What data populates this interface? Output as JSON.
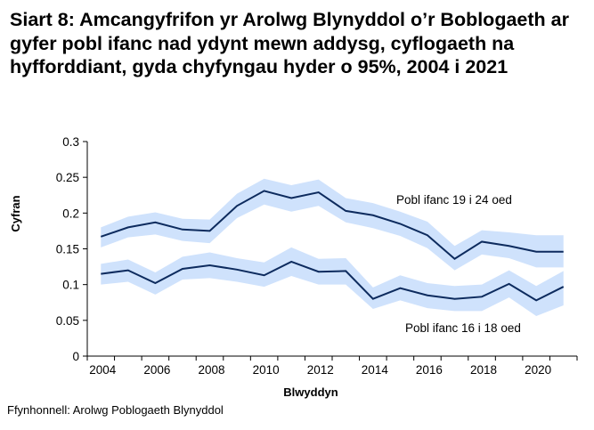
{
  "chart_data": {
    "type": "line",
    "title": "Siart 8: Amcangyfrifon yr Arolwg Blynyddol o’r Boblogaeth ar gyfer pobl ifanc nad ydynt mewn addysg, cyflogaeth na hyfforddiant, gyda chyfyngau hyder o 95%, 2004 i 2021",
    "xlabel": "Blwyddyn",
    "ylabel": "Cyfran",
    "ylim": [
      0,
      0.3
    ],
    "yticks": [
      "0",
      "0.05",
      "0.1",
      "0.15",
      "0.2",
      "0.25",
      "0.3"
    ],
    "xticks": [
      "2004",
      "2006",
      "2008",
      "2010",
      "2012",
      "2014",
      "2016",
      "2018",
      "2020"
    ],
    "x": [
      2004,
      2005,
      2006,
      2007,
      2008,
      2009,
      2010,
      2011,
      2012,
      2013,
      2014,
      2015,
      2016,
      2017,
      2018,
      2019,
      2020,
      2021
    ],
    "grid": false,
    "line_color": "#0d2b5e",
    "band_color": "#cfe2fc",
    "series": [
      {
        "name": "Pobl ifanc 19 i 24 oed",
        "values": [
          0.167,
          0.18,
          0.187,
          0.177,
          0.175,
          0.21,
          0.231,
          0.221,
          0.229,
          0.203,
          0.197,
          0.185,
          0.169,
          0.136,
          0.16,
          0.154,
          0.146,
          0.146
        ],
        "lower": [
          0.152,
          0.166,
          0.17,
          0.161,
          0.158,
          0.193,
          0.212,
          0.202,
          0.21,
          0.187,
          0.179,
          0.168,
          0.151,
          0.12,
          0.142,
          0.137,
          0.124,
          0.124
        ],
        "upper": [
          0.18,
          0.195,
          0.201,
          0.192,
          0.191,
          0.227,
          0.248,
          0.239,
          0.247,
          0.221,
          0.214,
          0.202,
          0.188,
          0.154,
          0.176,
          0.173,
          0.169,
          0.169
        ]
      },
      {
        "name": "Pobl ifanc 16 i 18 oed",
        "values": [
          0.115,
          0.12,
          0.102,
          0.122,
          0.127,
          0.121,
          0.113,
          0.132,
          0.118,
          0.119,
          0.08,
          0.095,
          0.085,
          0.08,
          0.083,
          0.101,
          0.078,
          0.097
        ],
        "lower": [
          0.1,
          0.104,
          0.086,
          0.107,
          0.109,
          0.104,
          0.097,
          0.112,
          0.1,
          0.1,
          0.066,
          0.078,
          0.067,
          0.063,
          0.063,
          0.082,
          0.056,
          0.071
        ],
        "upper": [
          0.129,
          0.135,
          0.117,
          0.139,
          0.145,
          0.137,
          0.131,
          0.152,
          0.136,
          0.137,
          0.096,
          0.113,
          0.102,
          0.098,
          0.1,
          0.12,
          0.098,
          0.119
        ]
      }
    ]
  },
  "source": "Ffynhonnell: Arolwg Poblogaeth Blynyddol"
}
